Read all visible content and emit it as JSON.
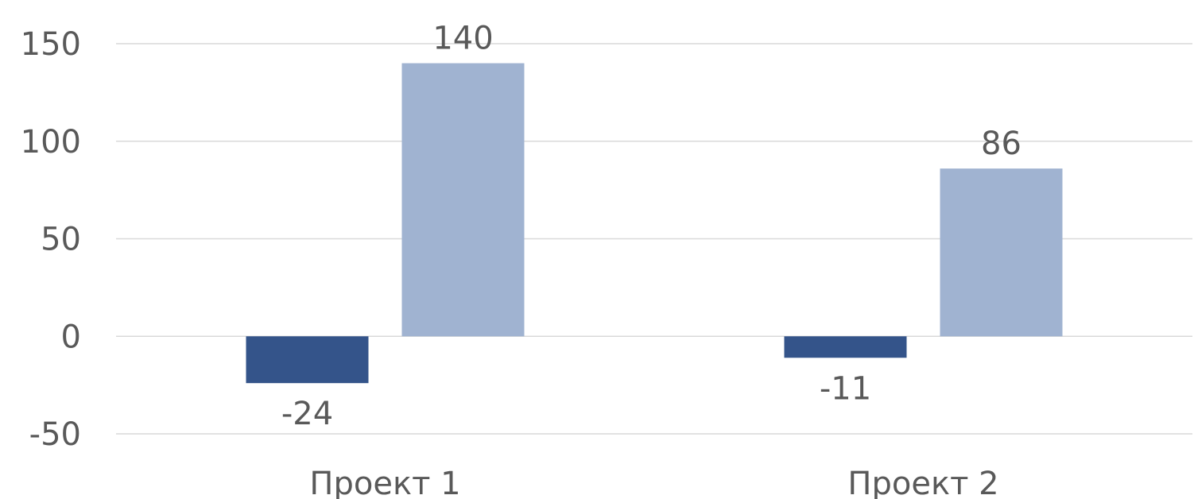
{
  "chart_data": {
    "type": "bar",
    "categories": [
      "Проект 1",
      "Проект 2"
    ],
    "series": [
      {
        "values": [
          -24,
          -11
        ],
        "color": "#34548a"
      },
      {
        "values": [
          140,
          86
        ],
        "color": "#a0b3d1"
      }
    ],
    "ylim": [
      -50,
      150
    ],
    "yticks": [
      -50,
      0,
      50,
      100,
      150
    ],
    "ytick_labels": [
      "-50",
      "0",
      "50",
      "100",
      "150"
    ],
    "data_labels": [
      [
        "-24",
        "-11"
      ],
      [
        "140",
        "86"
      ]
    ],
    "grid": true,
    "legend": "none"
  }
}
